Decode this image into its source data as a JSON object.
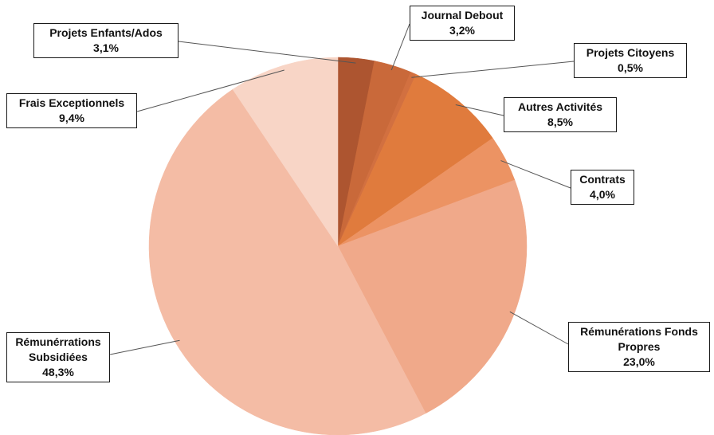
{
  "chart_data": {
    "type": "pie",
    "title": "",
    "slices": [
      {
        "label": "Projets Enfants/Ados",
        "lines": [
          "Projets Enfants/Ados"
        ],
        "value": 3.1,
        "value_label": "3,1%",
        "color": "#ad5530"
      },
      {
        "label": "Journal Debout",
        "lines": [
          "Journal Debout"
        ],
        "value": 3.2,
        "value_label": "3,2%",
        "color": "#c9693a"
      },
      {
        "label": "Projets Citoyens",
        "lines": [
          "Projets Citoyens"
        ],
        "value": 0.5,
        "value_label": "0,5%",
        "color": "#d27040"
      },
      {
        "label": "Autres Activités",
        "lines": [
          "Autres Activités"
        ],
        "value": 8.5,
        "value_label": "8,5%",
        "color": "#e07b3d"
      },
      {
        "label": "Contrats",
        "lines": [
          "Contrats"
        ],
        "value": 4.0,
        "value_label": "4,0%",
        "color": "#ec9363"
      },
      {
        "label": "Rémunérations Fonds Propres",
        "lines": [
          "Rémunérations Fonds",
          "Propres"
        ],
        "value": 23.0,
        "value_label": "23,0%",
        "color": "#f0a98a"
      },
      {
        "label": "Rémunérrations Subsidiées",
        "lines": [
          "Rémunérrations",
          "Subsidiées"
        ],
        "value": 48.3,
        "value_label": "48,3%",
        "color": "#f4bca5"
      },
      {
        "label": "Frais Exceptionnels",
        "lines": [
          "Frais Exceptionnels"
        ],
        "value": 9.4,
        "value_label": "9,4%",
        "color": "#f8d5c6"
      }
    ]
  }
}
